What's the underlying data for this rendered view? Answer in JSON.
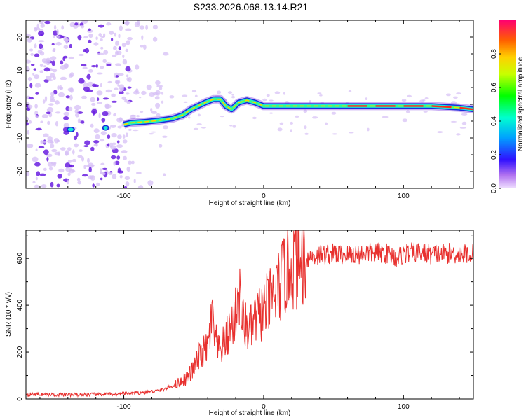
{
  "title": "S233.2026.068.13.14.R21",
  "colors": {
    "snr_line": "#e8302e",
    "ridge_outer": "#1b2ad9",
    "ridge_mid": "#19e8d8",
    "ridge_inner": "#ff2a1a",
    "ridge_core": "#ffd000",
    "speckle_dark": "#6a1ee0",
    "speckle_light": "#d6bff5"
  },
  "chart_data": [
    {
      "type": "heatmap",
      "title": "S233.2026.068.13.14.R21",
      "xlabel": "Height of straight line (km)",
      "ylabel": "Frequency (Hz)",
      "xlim": [
        -170,
        150
      ],
      "ylim": [
        -25,
        25
      ],
      "xticks": [
        -100,
        0,
        100
      ],
      "yticks": [
        -20,
        -10,
        0,
        10,
        20
      ],
      "colorbar": {
        "label": "Normalized spectral amplitude",
        "range": [
          0,
          1
        ],
        "ticks": [
          0.0,
          0.2,
          0.4,
          0.6,
          0.8
        ],
        "tick_labels": [
          "0.0",
          "0.2",
          "0.4",
          "0.6",
          "0.8"
        ]
      },
      "ridge": {
        "x": [
          -170,
          -150,
          -135,
          -125,
          -115,
          -100,
          -95,
          -85,
          -75,
          -65,
          -58,
          -52,
          -47,
          -42,
          -36,
          -31,
          -27,
          -23,
          -18,
          -12,
          -6,
          0,
          20,
          40,
          60,
          80,
          100,
          120,
          140,
          150
        ],
        "y": [
          -7.5,
          -7.5,
          -7.5,
          -7.0,
          -6.5,
          -6,
          -5.5,
          -5.2,
          -4.8,
          -4.2,
          -3.2,
          -1.5,
          -0.5,
          0.5,
          1.5,
          1.5,
          -0.5,
          -1.5,
          0.5,
          1.2,
          0.5,
          -0.5,
          -0.5,
          -0.5,
          -0.5,
          -0.5,
          -0.5,
          -0.5,
          -1.0,
          -1.5
        ]
      },
      "noise_region": [
        -170,
        -95
      ]
    },
    {
      "type": "line",
      "xlabel": "Height of straight line (km)",
      "ylabel": "SNR (10 * v/v)",
      "xlim": [
        -170,
        150
      ],
      "ylim": [
        0,
        720
      ],
      "xticks": [
        -100,
        0,
        100
      ],
      "yticks": [
        0,
        200,
        400,
        600
      ],
      "series": [
        {
          "name": "SNR",
          "x": [
            -170,
            -140,
            -110,
            -90,
            -75,
            -65,
            -55,
            -50,
            -45,
            -40,
            -37,
            -35,
            -32,
            -28,
            -25,
            -20,
            -18,
            -15,
            -10,
            -5,
            0,
            5,
            10,
            15,
            20,
            25,
            30,
            40,
            50,
            60,
            70,
            80,
            90,
            95,
            100,
            110,
            120,
            130,
            140,
            150
          ],
          "y": [
            20,
            18,
            20,
            25,
            35,
            55,
            90,
            130,
            190,
            220,
            350,
            260,
            200,
            240,
            280,
            360,
            480,
            330,
            290,
            350,
            380,
            420,
            470,
            530,
            570,
            585,
            600,
            615,
            620,
            615,
            620,
            625,
            620,
            600,
            620,
            625,
            618,
            622,
            620,
            618
          ]
        }
      ]
    }
  ]
}
